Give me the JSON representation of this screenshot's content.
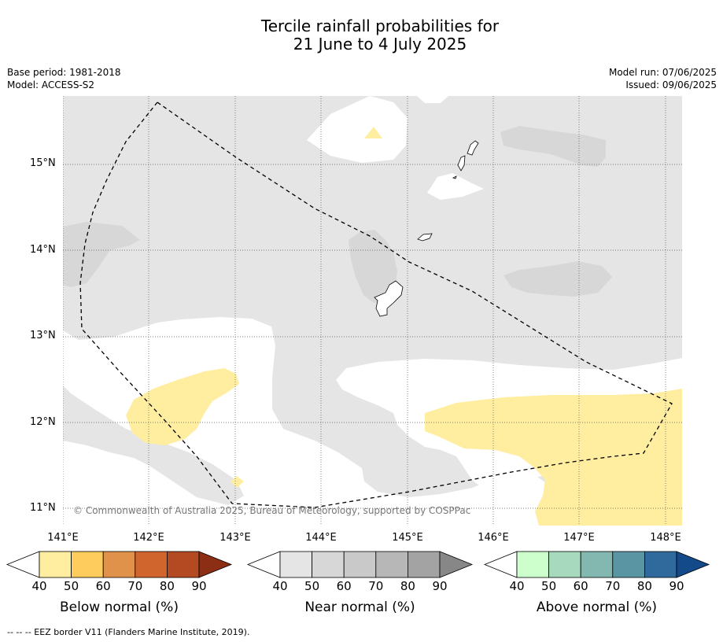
{
  "title_line1": "Tercile rainfall probabilities for",
  "title_line2": "21 June to 4 July 2025",
  "base_period": "Base period: 1981-2018",
  "model": "Model: ACCESS-S2",
  "model_run": "Model run: 07/06/2025",
  "issued": "Issued: 09/06/2025",
  "copyright": "© Commonwealth of Australia 2025, Bureau of Meteorology, supported by COSPPac",
  "lat_labels": [
    "15°N",
    "14°N",
    "13°N",
    "12°N",
    "11°N"
  ],
  "lon_labels": [
    "141°E",
    "142°E",
    "143°E",
    "144°E",
    "145°E",
    "146°E",
    "147°E",
    "148°E"
  ],
  "legends": [
    {
      "title": "Below normal (%)",
      "ticks": [
        "40",
        "50",
        "60",
        "70",
        "80",
        "90"
      ],
      "low_color": "#ffffff",
      "colors": [
        "#ffeda0",
        "#fecc5c",
        "#e0924a",
        "#d0662e",
        "#b34a22"
      ],
      "high_color": "#8c2e14"
    },
    {
      "title": "Near normal (%)",
      "ticks": [
        "40",
        "50",
        "60",
        "70",
        "80",
        "90"
      ],
      "low_color": "#ffffff",
      "colors": [
        "#e5e5e5",
        "#d7d7d7",
        "#c9c9c9",
        "#b7b7b7",
        "#a3a3a3"
      ],
      "high_color": "#878787"
    },
    {
      "title": "Above normal (%)",
      "ticks": [
        "40",
        "50",
        "60",
        "70",
        "80",
        "90"
      ],
      "low_color": "#ffffff",
      "colors": [
        "#ccffcc",
        "#a6d9bd",
        "#83b8b0",
        "#5a95a4",
        "#306a9c"
      ],
      "high_color": "#124a8a"
    }
  ],
  "footnote": "--  --  -- EEZ border V11 (Flanders Marine Institute, 2019).",
  "colors": {
    "near_normal_40": "#e5e5e5",
    "near_normal_50": "#d7d7d7",
    "below_normal_40": "#ffeda0",
    "grid": "#555555"
  }
}
